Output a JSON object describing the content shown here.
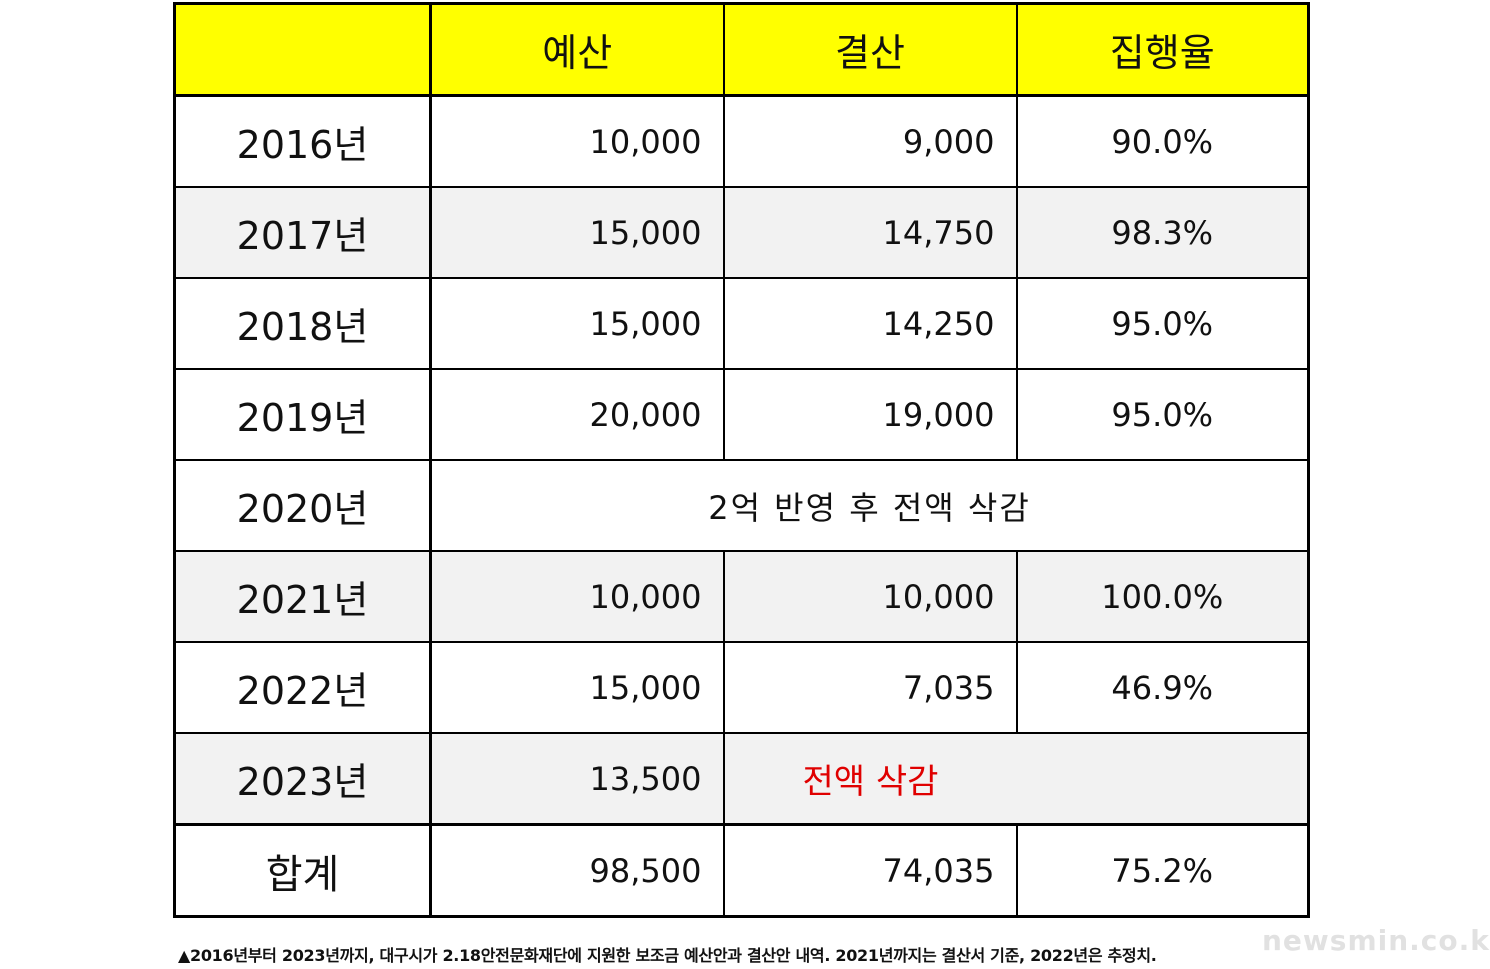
{
  "table": {
    "headers": [
      "",
      "예산",
      "결산",
      "집행율"
    ],
    "rows": [
      {
        "year": "2016년",
        "budget": "10,000",
        "settlement": "9,000",
        "rate": "90.0%"
      },
      {
        "year": "2017년",
        "budget": "15,000",
        "settlement": "14,750",
        "rate": "98.3%"
      },
      {
        "year": "2018년",
        "budget": "15,000",
        "settlement": "14,250",
        "rate": "95.0%"
      },
      {
        "year": "2019년",
        "budget": "20,000",
        "settlement": "19,000",
        "rate": "95.0%"
      },
      {
        "year": "2020년",
        "merged_note": "2억 반영 후 전액 삭감"
      },
      {
        "year": "2021년",
        "budget": "10,000",
        "settlement": "10,000",
        "rate": "100.0%"
      },
      {
        "year": "2022년",
        "budget": "15,000",
        "settlement": "7,035",
        "rate": "46.9%"
      },
      {
        "year": "2023년",
        "budget": "13,500",
        "settlement_note": "전액 삭감",
        "rate": ""
      }
    ],
    "total": {
      "label": "합계",
      "budget": "98,500",
      "settlement": "74,035",
      "rate": "75.2%"
    }
  },
  "caption": "▲2016년부터 2023년까지, 대구시가 2.18안전문화재단에 지원한 보조금 예산안과 결산안 내역. 2021년까지는 결산서 기준, 2022년은 추정치.",
  "watermark": "newsmin.co.kr",
  "colors": {
    "header_bg": "#ffff00",
    "shaded_row_bg": "#f2f2f2",
    "cut_note_text": "#e00000"
  }
}
